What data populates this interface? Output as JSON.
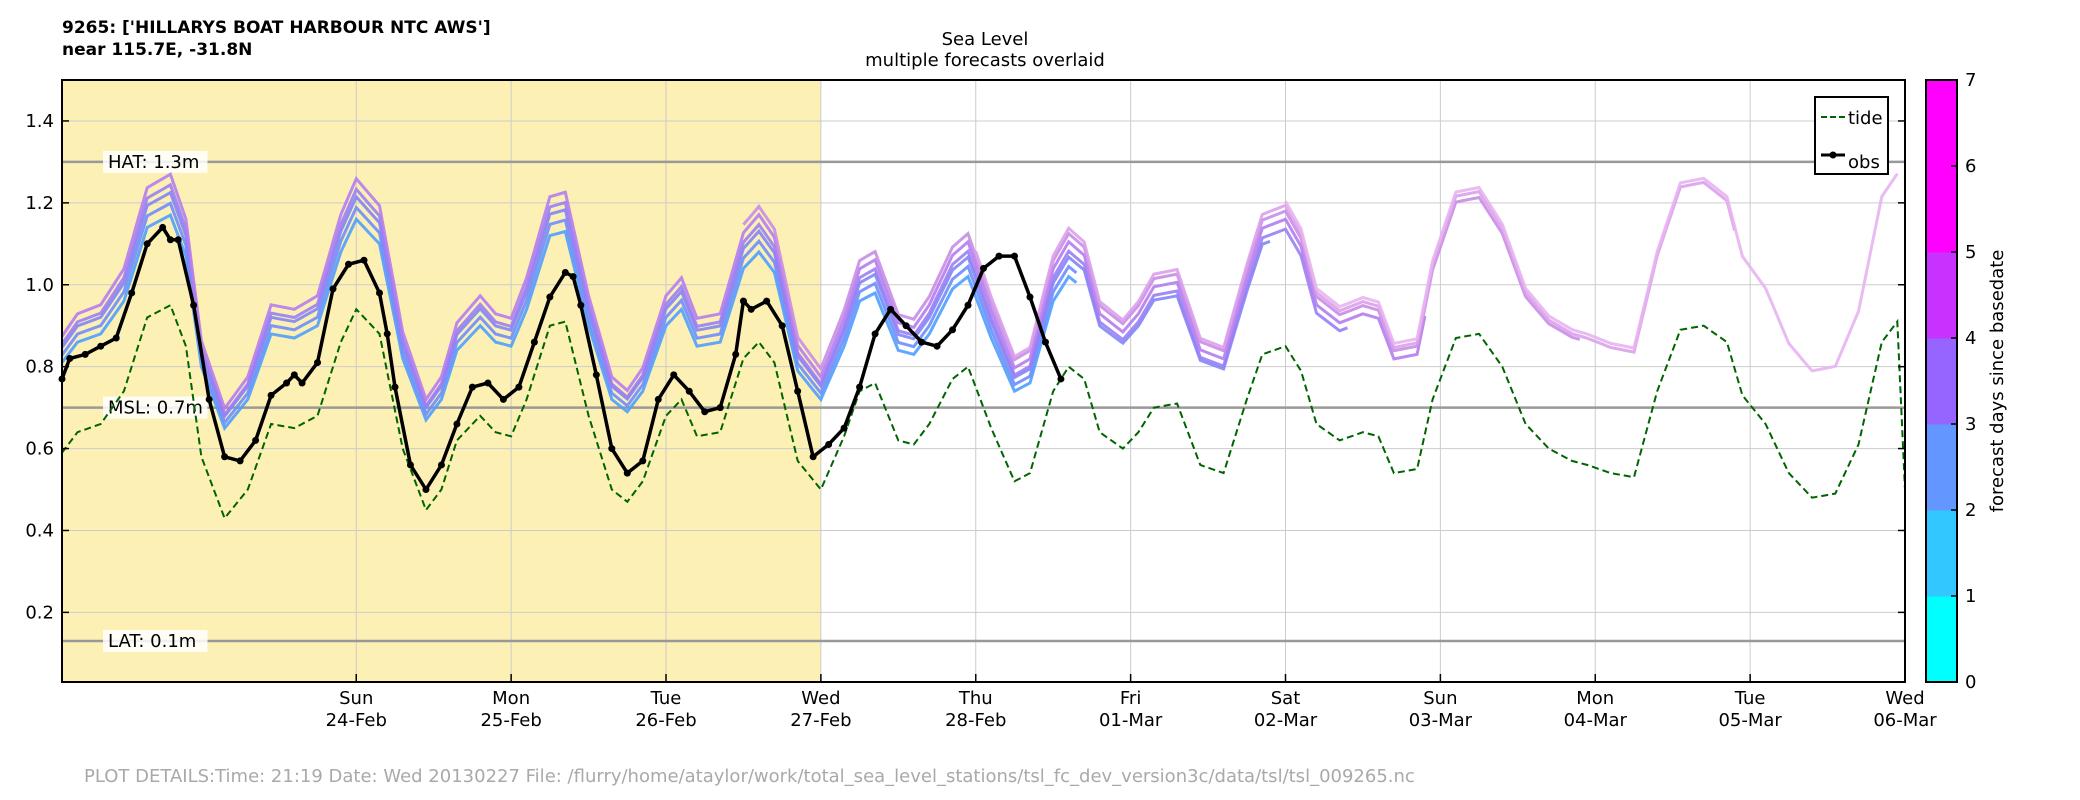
{
  "header": {
    "station": "9265: ['HILLARYS BOAT HARBOUR NTC AWS']",
    "location": "near 115.7E, -31.8N"
  },
  "footer": {
    "details": "PLOT DETAILS:Time: 21:19 Date: Wed 20130227 File: /flurry/home/ataylor/work/total_sea_level_stations/tsl_fc_dev_version3c/data/tsl/tsl_009265.nc"
  },
  "colors": {
    "hindcast_shade": "#fdf0b4",
    "tide": "#006400",
    "obs": "#000000",
    "ref_lines": "#999999",
    "colorbar": [
      "#00ffff",
      "#32c8ff",
      "#6496ff",
      "#9664ff",
      "#c832ff",
      "#ff00ff",
      "#ff00ff"
    ]
  },
  "chart_data": {
    "type": "line",
    "title": "Sea Level",
    "subtitle": "multiple forecasts overlaid",
    "xlabel": "",
    "ylabel": "",
    "x_unit": "days from 2013-02-23 00:00",
    "xlim": [
      -0.9,
      11.0
    ],
    "ylim": [
      0.03,
      1.5
    ],
    "yticks": [
      0.2,
      0.4,
      0.6,
      0.8,
      1.0,
      1.2,
      1.4
    ],
    "grid": true,
    "legend_position": "top-right",
    "legend": [
      {
        "label": "tide",
        "style": "dashed"
      },
      {
        "label": "obs",
        "style": "solid-markers"
      }
    ],
    "xticks": [
      {
        "x": 1,
        "day": "Sun",
        "date": "24-Feb"
      },
      {
        "x": 2,
        "day": "Mon",
        "date": "25-Feb"
      },
      {
        "x": 3,
        "day": "Tue",
        "date": "26-Feb"
      },
      {
        "x": 4,
        "day": "Wed",
        "date": "27-Feb"
      },
      {
        "x": 5,
        "day": "Thu",
        "date": "28-Feb"
      },
      {
        "x": 6,
        "day": "Fri",
        "date": "01-Mar"
      },
      {
        "x": 7,
        "day": "Sat",
        "date": "02-Mar"
      },
      {
        "x": 8,
        "day": "Sun",
        "date": "03-Mar"
      },
      {
        "x": 9,
        "day": "Mon",
        "date": "04-Mar"
      },
      {
        "x": 10,
        "day": "Tue",
        "date": "05-Mar"
      },
      {
        "x": 11,
        "day": "Wed",
        "date": "06-Mar"
      }
    ],
    "shaded_region": {
      "x": [
        -0.9,
        4.0
      ]
    },
    "reference_lines": [
      {
        "label": "HAT: 1.3m",
        "y": 1.3
      },
      {
        "label": "MSL: 0.7m",
        "y": 0.7
      },
      {
        "label": "LAT: 0.1m",
        "y": 0.13
      }
    ],
    "colorbar": {
      "label": "forecast days since basedate",
      "ticks": [
        "0",
        "1",
        "2",
        "3",
        "4",
        "5",
        "6",
        "7"
      ]
    },
    "tide": {
      "x": [
        -0.9,
        -0.8,
        -0.65,
        -0.5,
        -0.35,
        -0.2,
        -0.1,
        0.0,
        0.15,
        0.3,
        0.45,
        0.6,
        0.75,
        0.9,
        1.0,
        1.15,
        1.3,
        1.45,
        1.55,
        1.65,
        1.8,
        1.9,
        2.0,
        2.1,
        2.25,
        2.35,
        2.5,
        2.65,
        2.75,
        2.85,
        3.0,
        3.1,
        3.2,
        3.35,
        3.5,
        3.6,
        3.7,
        3.85,
        4.0,
        4.15,
        4.25,
        4.35,
        4.5,
        4.6,
        4.7,
        4.85,
        4.95,
        5.1,
        5.25,
        5.35,
        5.5,
        5.6,
        5.7,
        5.8,
        5.95,
        6.05,
        6.15,
        6.3,
        6.45,
        6.6,
        6.75,
        6.85,
        7.0,
        7.1,
        7.2,
        7.35,
        7.5,
        7.6,
        7.7,
        7.85,
        7.95,
        8.1,
        8.25,
        8.4,
        8.55,
        8.7,
        8.85,
        8.95,
        9.1,
        9.25,
        9.4,
        9.55,
        9.7,
        9.85,
        9.95,
        10.1,
        10.25,
        10.4,
        10.55,
        10.7,
        10.85,
        10.95
      ],
      "y": [
        0.59,
        0.64,
        0.66,
        0.74,
        0.92,
        0.95,
        0.85,
        0.58,
        0.43,
        0.5,
        0.66,
        0.65,
        0.68,
        0.86,
        0.94,
        0.88,
        0.6,
        0.45,
        0.5,
        0.62,
        0.68,
        0.64,
        0.63,
        0.72,
        0.9,
        0.91,
        0.68,
        0.5,
        0.47,
        0.52,
        0.68,
        0.72,
        0.63,
        0.64,
        0.82,
        0.86,
        0.81,
        0.57,
        0.5,
        0.63,
        0.74,
        0.76,
        0.62,
        0.61,
        0.66,
        0.77,
        0.8,
        0.65,
        0.52,
        0.54,
        0.74,
        0.8,
        0.77,
        0.64,
        0.6,
        0.64,
        0.7,
        0.71,
        0.56,
        0.54,
        0.72,
        0.83,
        0.85,
        0.79,
        0.66,
        0.62,
        0.64,
        0.63,
        0.54,
        0.55,
        0.72,
        0.87,
        0.88,
        0.8,
        0.66,
        0.6,
        0.57,
        0.56,
        0.54,
        0.53,
        0.74,
        0.89,
        0.9,
        0.86,
        0.73,
        0.66,
        0.54,
        0.48,
        0.49,
        0.61,
        0.86,
        0.91
      ],
      "x_end": [
        11.0
      ],
      "y_end": [
        0.5
      ]
    },
    "obs": {
      "x": [
        -0.9,
        -0.85,
        -0.75,
        -0.65,
        -0.55,
        -0.45,
        -0.35,
        -0.25,
        -0.2,
        -0.15,
        -0.05,
        0.05,
        0.15,
        0.25,
        0.35,
        0.45,
        0.55,
        0.6,
        0.65,
        0.75,
        0.85,
        0.95,
        1.05,
        1.15,
        1.2,
        1.25,
        1.35,
        1.45,
        1.55,
        1.65,
        1.75,
        1.85,
        1.95,
        2.05,
        2.15,
        2.25,
        2.35,
        2.4,
        2.45,
        2.55,
        2.65,
        2.75,
        2.85,
        2.95,
        3.05,
        3.15,
        3.25,
        3.35,
        3.45,
        3.5,
        3.55,
        3.65,
        3.75,
        3.85,
        3.95,
        4.05,
        4.15,
        4.25,
        4.35,
        4.45,
        4.55,
        4.65,
        4.75,
        4.85,
        4.95,
        5.05,
        5.15
      ],
      "y": [
        0.77,
        0.82,
        0.83,
        0.85,
        0.87,
        0.98,
        1.1,
        1.14,
        1.11,
        1.11,
        0.95,
        0.72,
        0.58,
        0.57,
        0.62,
        0.73,
        0.76,
        0.78,
        0.76,
        0.81,
        0.99,
        1.05,
        1.06,
        0.98,
        0.88,
        0.75,
        0.56,
        0.5,
        0.56,
        0.66,
        0.75,
        0.76,
        0.72,
        0.75,
        0.86,
        0.97,
        1.03,
        1.02,
        0.95,
        0.78,
        0.6,
        0.54,
        0.57,
        0.72,
        0.78,
        0.74,
        0.69,
        0.7,
        0.83,
        0.96,
        0.94,
        0.96,
        0.9,
        0.74,
        0.58,
        0.61,
        0.65,
        0.75,
        0.88,
        0.94,
        0.9,
        0.86,
        0.85,
        0.89,
        0.95,
        1.04,
        1.07
      ]
    },
    "obs_tail": {
      "x": [
        5.15,
        5.25,
        5.35,
        5.45,
        5.55
      ],
      "y": [
        1.07,
        1.07,
        0.97,
        0.86,
        0.77
      ]
    },
    "forecasts": [
      {
        "lead_days": 0,
        "color": "#4f9eff",
        "x_start": -0.9,
        "x_end": 5.65,
        "offset": 0.0,
        "amp": 1.0
      },
      {
        "lead_days": 0,
        "color": "#6f8dfd",
        "x_start": -0.9,
        "x_end": 5.65,
        "offset": 0.02,
        "amp": 1.03
      },
      {
        "lead_days": 1,
        "color": "#7f86f5",
        "x_start": -0.9,
        "x_end": 6.9,
        "offset": 0.04,
        "amp": 1.05
      },
      {
        "lead_days": 1,
        "color": "#9b7ef5",
        "x_start": -0.9,
        "x_end": 7.4,
        "offset": 0.05,
        "amp": 1.08
      },
      {
        "lead_days": 2,
        "color": "#b57cf0",
        "x_start": -0.9,
        "x_end": 7.9,
        "offset": 0.07,
        "amp": 1.1
      },
      {
        "lead_days": 3,
        "color": "#c88de6",
        "x_start": 3.5,
        "x_end": 8.9,
        "offset": 0.09,
        "amp": 1.1
      },
      {
        "lead_days": 4,
        "color": "#dca0ec",
        "x_start": 5.0,
        "x_end": 9.9,
        "offset": 0.1,
        "amp": 1.12
      },
      {
        "lead_days": 5,
        "color": "#e7b4f1",
        "x_start": 7.0,
        "x_end": 10.95,
        "offset": 0.11,
        "amp": 1.12
      }
    ]
  }
}
